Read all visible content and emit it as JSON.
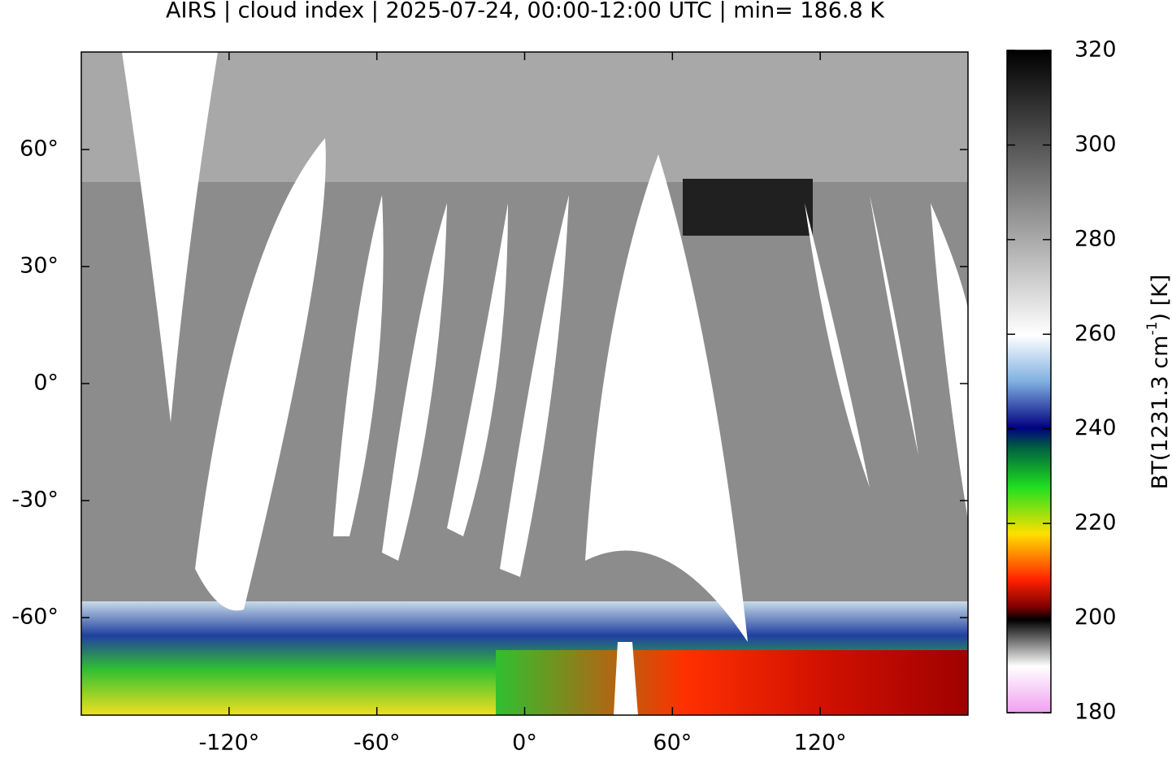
{
  "chart_data": {
    "type": "map",
    "title": "AIRS | cloud index | 2025-07-24, 00:00-12:00 UTC | min= 186.8 K",
    "xlim": [
      -180,
      180
    ],
    "xticks": [
      {
        "value": -120,
        "label": "-120°"
      },
      {
        "value": -60,
        "label": "-60°"
      },
      {
        "value": 0,
        "label": "0°"
      },
      {
        "value": 60,
        "label": "60°"
      },
      {
        "value": 120,
        "label": "120°"
      }
    ],
    "ylim": [
      -85,
      85
    ],
    "yticks": [
      {
        "value": -60,
        "label": "-60°"
      },
      {
        "value": -30,
        "label": "-30°"
      },
      {
        "value": 0,
        "label": "0°"
      },
      {
        "value": 30,
        "label": "30°"
      },
      {
        "value": 60,
        "label": "60°"
      }
    ],
    "colorbar": {
      "label": {
        "main": "BT(1231.3 cm",
        "sup": "-1",
        "tail": ") [K]"
      },
      "lim": [
        180,
        320
      ],
      "ticks": [
        180,
        200,
        220,
        240,
        260,
        280,
        300,
        320
      ]
    }
  }
}
